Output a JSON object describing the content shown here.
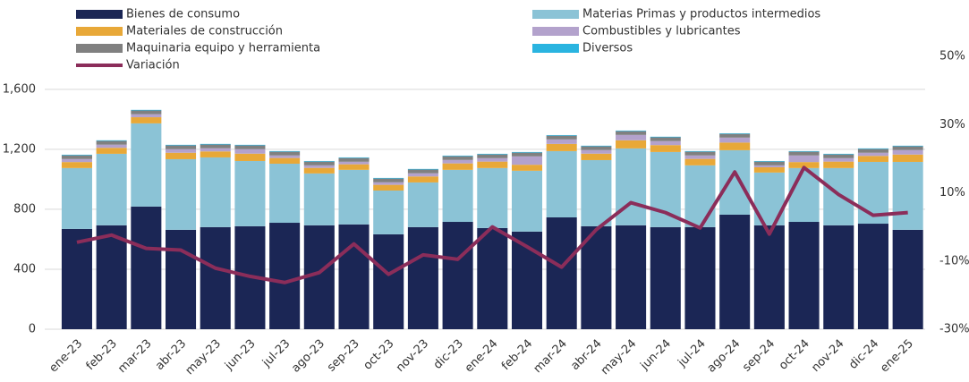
{
  "chart_data": {
    "type": "bar",
    "categories": [
      "ene-23",
      "feb-23",
      "mar-23",
      "abr-23",
      "may-23",
      "jun-23",
      "jul-23",
      "ago-23",
      "sep-23",
      "oct-23",
      "nov-23",
      "dic-23",
      "ene-24",
      "feb-24",
      "mar-24",
      "abr-24",
      "may-24",
      "jun-24",
      "jul-24",
      "ago-24",
      "sep-24",
      "oct-24",
      "nov-24",
      "dic-24",
      "ene-25"
    ],
    "stacked": true,
    "series": [
      {
        "name": "Bienes de consumo",
        "color": "#1b2655",
        "values": [
          669,
          693,
          818,
          663,
          681,
          687,
          710,
          693,
          699,
          633,
          681,
          716,
          675,
          651,
          746,
          687,
          693,
          681,
          681,
          764,
          693,
          716,
          693,
          704,
          663
        ]
      },
      {
        "name": "Materias Primas y productos intermedios",
        "color": "#8bc3d6",
        "values": [
          406,
          477,
          555,
          471,
          465,
          435,
          394,
          346,
          364,
          292,
          298,
          347,
          400,
          406,
          442,
          441,
          513,
          501,
          412,
          430,
          352,
          359,
          382,
          412,
          453
        ]
      },
      {
        "name": "Materiales de construcción",
        "color": "#e8a838",
        "values": [
          40,
          40,
          41,
          43,
          40,
          49,
          38,
          37,
          37,
          38,
          40,
          43,
          43,
          40,
          48,
          43,
          54,
          46,
          43,
          51,
          35,
          40,
          43,
          40,
          49
        ]
      },
      {
        "name": "Combustibles y lubricantes",
        "color": "#b3a2cc",
        "values": [
          20,
          21,
          20,
          24,
          21,
          30,
          17,
          17,
          17,
          17,
          21,
          23,
          23,
          56,
          30,
          24,
          36,
          27,
          23,
          33,
          13,
          44,
          23,
          21,
          30
        ]
      },
      {
        "name": "Maquinaria equipo y herramienta",
        "color": "#808080",
        "values": [
          25,
          25,
          25,
          25,
          25,
          25,
          25,
          25,
          25,
          25,
          25,
          25,
          25,
          25,
          25,
          25,
          25,
          25,
          25,
          25,
          25,
          25,
          25,
          25,
          25
        ]
      },
      {
        "name": "Diversos",
        "color": "#2ab4e0",
        "values": [
          4,
          4,
          4,
          4,
          4,
          4,
          4,
          4,
          4,
          4,
          4,
          4,
          4,
          4,
          4,
          4,
          4,
          4,
          4,
          4,
          4,
          4,
          4,
          4,
          4
        ]
      },
      {
        "name": "Variación",
        "type": "line",
        "axis": "y2",
        "color": "#8b2d5a",
        "values": [
          -4.5,
          -2.4,
          -6.3,
          -6.8,
          -12.1,
          -14.5,
          -16.3,
          -13.4,
          -5.0,
          -13.9,
          -8.2,
          -9.5,
          0.0,
          -5.8,
          -11.8,
          -0.8,
          7.1,
          4.2,
          -0.3,
          16.1,
          -2.1,
          17.4,
          9.5,
          3.4,
          4.2
        ]
      }
    ],
    "ylim": [
      0,
      1820
    ],
    "yticks": [
      0,
      400,
      800,
      {
        "value": 1200,
        "label": "1,200"
      },
      {
        "value": 1600,
        "label": "1,600"
      }
    ],
    "y2lim": [
      -30,
      50
    ],
    "y2ticks": [
      {
        "value": 50,
        "label": "50%"
      },
      {
        "value": 30,
        "label": "30%"
      },
      {
        "value": 10,
        "label": "10%"
      },
      {
        "value": -10,
        "label": "-10%"
      },
      {
        "value": -30,
        "label": "-30%"
      }
    ],
    "grid": true,
    "legend": "top"
  }
}
